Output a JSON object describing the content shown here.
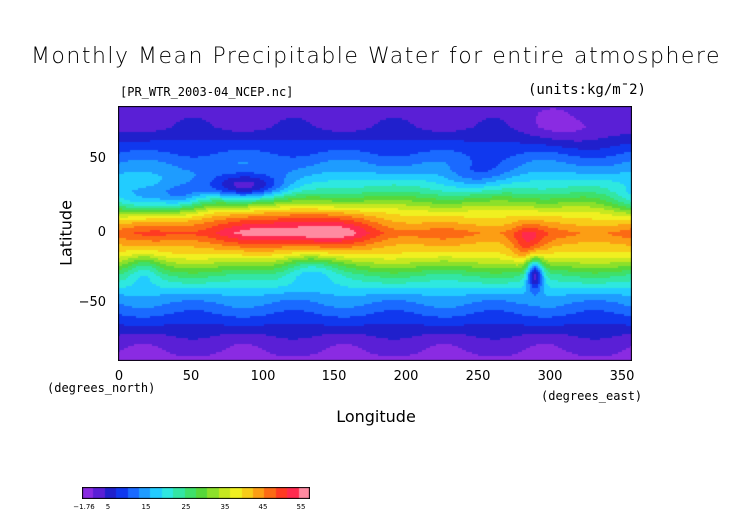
{
  "title": "Monthly Mean Precipitable Water for entire atmosphere",
  "file_label": "[PR_WTR_2003-04_NCEP.nc]",
  "units_label": "(units:kg/m¯2)",
  "x_axis": {
    "label": "Longitude",
    "unit": "(degrees_east)",
    "ticks": [
      "0",
      "50",
      "100",
      "150",
      "200",
      "250",
      "300",
      "350"
    ],
    "range": [
      0,
      357.5
    ]
  },
  "y_axis": {
    "label": "Latitude",
    "unit": "(degrees_north)",
    "ticks": [
      "50",
      "0",
      "−50"
    ],
    "range": [
      -90,
      90
    ]
  },
  "colorbar": {
    "labels": [
      "−1.76",
      "5",
      "15",
      "25",
      "35",
      "45",
      "55"
    ],
    "range": [
      -1.76,
      58
    ],
    "colors": [
      "#8a2be2",
      "#5a1fd6",
      "#2020cc",
      "#1038ee",
      "#1a6aff",
      "#1e9cff",
      "#22ccff",
      "#2ee8e0",
      "#33e6a4",
      "#3ee06a",
      "#56d83a",
      "#8ce02a",
      "#c6e820",
      "#f0f020",
      "#f8cc18",
      "#fc9e14",
      "#fc6a14",
      "#ff3a22",
      "#ff2a4e",
      "#ff8aa0"
    ]
  },
  "chart_data": {
    "type": "heatmap",
    "title": "Monthly Mean Precipitable Water for entire atmosphere",
    "xlabel": "Longitude",
    "ylabel": "Latitude",
    "xlim": [
      0,
      357.5
    ],
    "ylim": [
      -90,
      90
    ],
    "units": "kg/m¯2",
    "value_range": [
      -1.76,
      55
    ],
    "zonal_profile_lat": [
      90,
      75,
      60,
      45,
      30,
      15,
      0,
      -15,
      -30,
      -45,
      -60,
      -75,
      -90
    ],
    "zonal_profile_values": [
      2,
      4,
      9,
      15,
      24,
      38,
      47,
      39,
      25,
      15,
      9,
      3,
      0
    ]
  }
}
